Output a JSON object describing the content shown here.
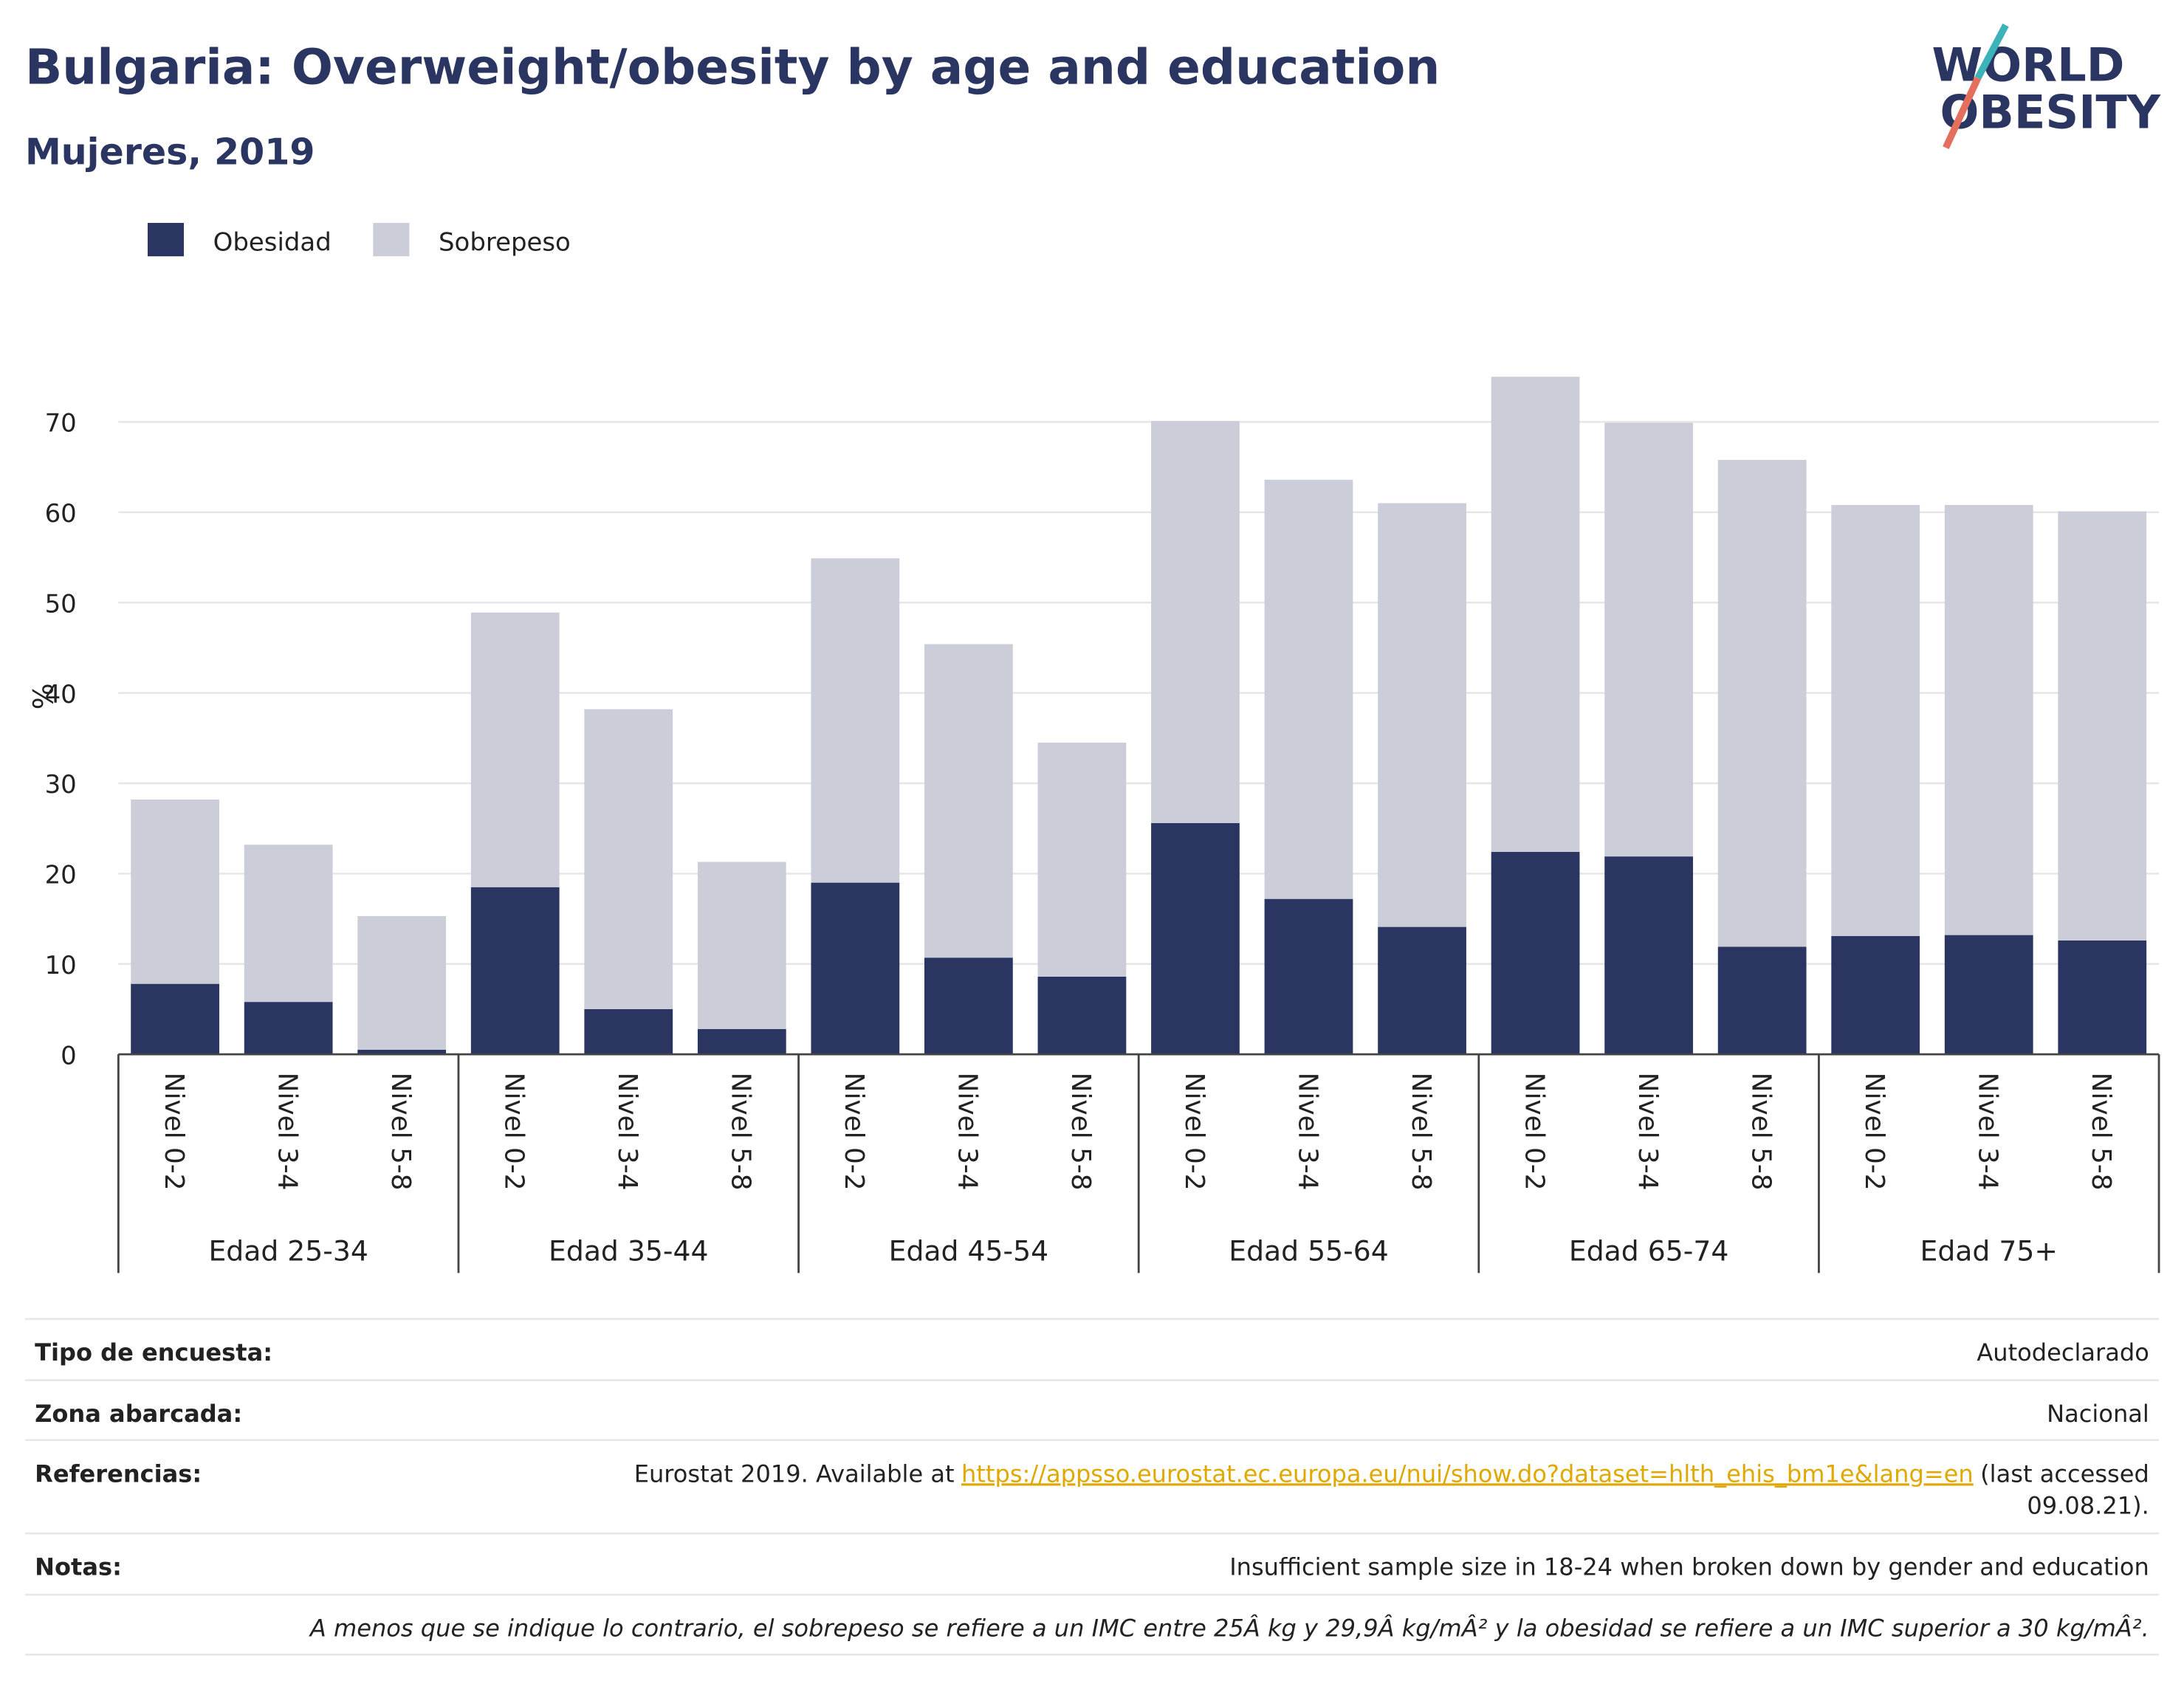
{
  "chart_data": {
    "type": "stacked_bar",
    "title": "Bulgaria: Overweight/obesity by age and education",
    "subtitle": "Mujeres, 2019",
    "logo": [
      "WORLD",
      "OBESITY"
    ],
    "ylabel": "%",
    "groups": [
      "Edad 25-34",
      "Edad 35-44",
      "Edad 45-54",
      "Edad 55-64",
      "Edad 65-74",
      "Edad 75+"
    ],
    "categories": [
      "Nivel 0-2",
      "Nivel 3-4",
      "Nivel 5-8",
      "Nivel 0-2",
      "Nivel 3-4",
      "Nivel 5-8",
      "Nivel 0-2",
      "Nivel 3-4",
      "Nivel 5-8",
      "Nivel 0-2",
      "Nivel 3-4",
      "Nivel 5-8",
      "Nivel 0-2",
      "Nivel 3-4",
      "Nivel 5-8",
      "Nivel 0-2",
      "Nivel 3-4",
      "Nivel 5-8"
    ],
    "series": [
      {
        "name": "Obesidad",
        "color": "#2a3561",
        "values": [
          7.8,
          5.8,
          0.5,
          18.5,
          5.0,
          2.8,
          19.0,
          10.7,
          8.6,
          25.6,
          17.2,
          14.1,
          22.4,
          21.9,
          11.9,
          13.1,
          13.2,
          12.6
        ]
      },
      {
        "name": "Sobrepeso",
        "color": "#cbcdd9",
        "values": [
          20.4,
          17.4,
          14.8,
          30.4,
          33.2,
          18.5,
          35.9,
          34.7,
          25.9,
          44.5,
          46.4,
          46.9,
          52.6,
          48.0,
          53.9,
          47.7,
          47.6,
          47.5
        ]
      }
    ],
    "ylim": [
      0,
      78
    ],
    "yticks": [
      0,
      10,
      20,
      30,
      40,
      50,
      60,
      70
    ],
    "grid": true,
    "legend": "top-left"
  },
  "footer": {
    "rows": [
      {
        "label": "Tipo de encuesta:",
        "value": "Autodeclarado"
      },
      {
        "label": "Zona abarcada:",
        "value": "Nacional"
      },
      {
        "label": "Referencias:",
        "text": "Eurostat 2019. Available at",
        "link": "https://appsso.eurostat.ec.europa.eu/nui/show.do?dataset=hlth_ehis_bm1e&lang=en",
        "suffix": [
          "(last accessed",
          "09.08.21)."
        ]
      },
      {
        "label": "Notas:",
        "value": "Insufficient sample size in 18-24 when broken down by gender and education"
      }
    ],
    "note": "A menos que se indique lo contrario, el sobrepeso se refiere a un IMC entre 25Â kg y 29,9Â kg/mÂ² y la obesidad se refiere a un IMC superior a 30 kg/mÂ²."
  }
}
